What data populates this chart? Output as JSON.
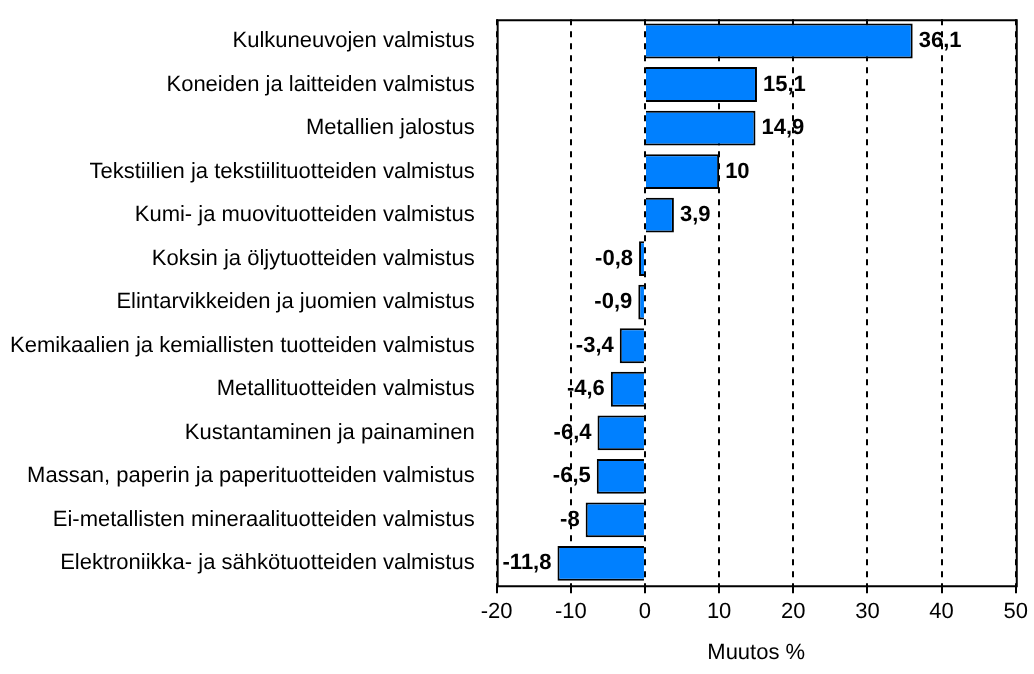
{
  "chart_data": {
    "type": "bar",
    "orientation": "horizontal",
    "xlabel": "Muutos %",
    "categories": [
      "Kulkuneuvojen valmistus",
      "Koneiden ja laitteiden valmistus",
      "Metallien jalostus",
      "Tekstiilien ja tekstiilituotteiden valmistus",
      "Kumi- ja muovituotteiden valmistus",
      "Koksin ja öljytuotteiden valmistus",
      "Elintarvikkeiden ja juomien valmistus",
      "Kemikaalien ja kemiallisten tuotteiden valmistus",
      "Metallituotteiden valmistus",
      "Kustantaminen ja painaminen",
      "Massan, paperin ja paperituotteiden valmistus",
      "Ei-metallisten mineraalituotteiden valmistus",
      "Elektroniikka- ja sähkötuotteiden valmistus"
    ],
    "values": [
      36.1,
      15.1,
      14.9,
      10,
      3.9,
      -0.8,
      -0.9,
      -3.4,
      -4.6,
      -6.4,
      -6.5,
      -8,
      -11.8
    ],
    "value_labels": [
      "36,1",
      "15,1",
      "14,9",
      "10",
      "3,9",
      "-0,8",
      "-0,9",
      "-3,4",
      "-4,6",
      "-6,4",
      "-6,5",
      "-8",
      "-11,8"
    ],
    "color": "#0080ff",
    "xlim": [
      -20,
      50
    ],
    "xticks": [
      -20,
      -10,
      0,
      10,
      20,
      30,
      40,
      50
    ],
    "grid": "x",
    "line_style": "dashed",
    "legend": false
  }
}
